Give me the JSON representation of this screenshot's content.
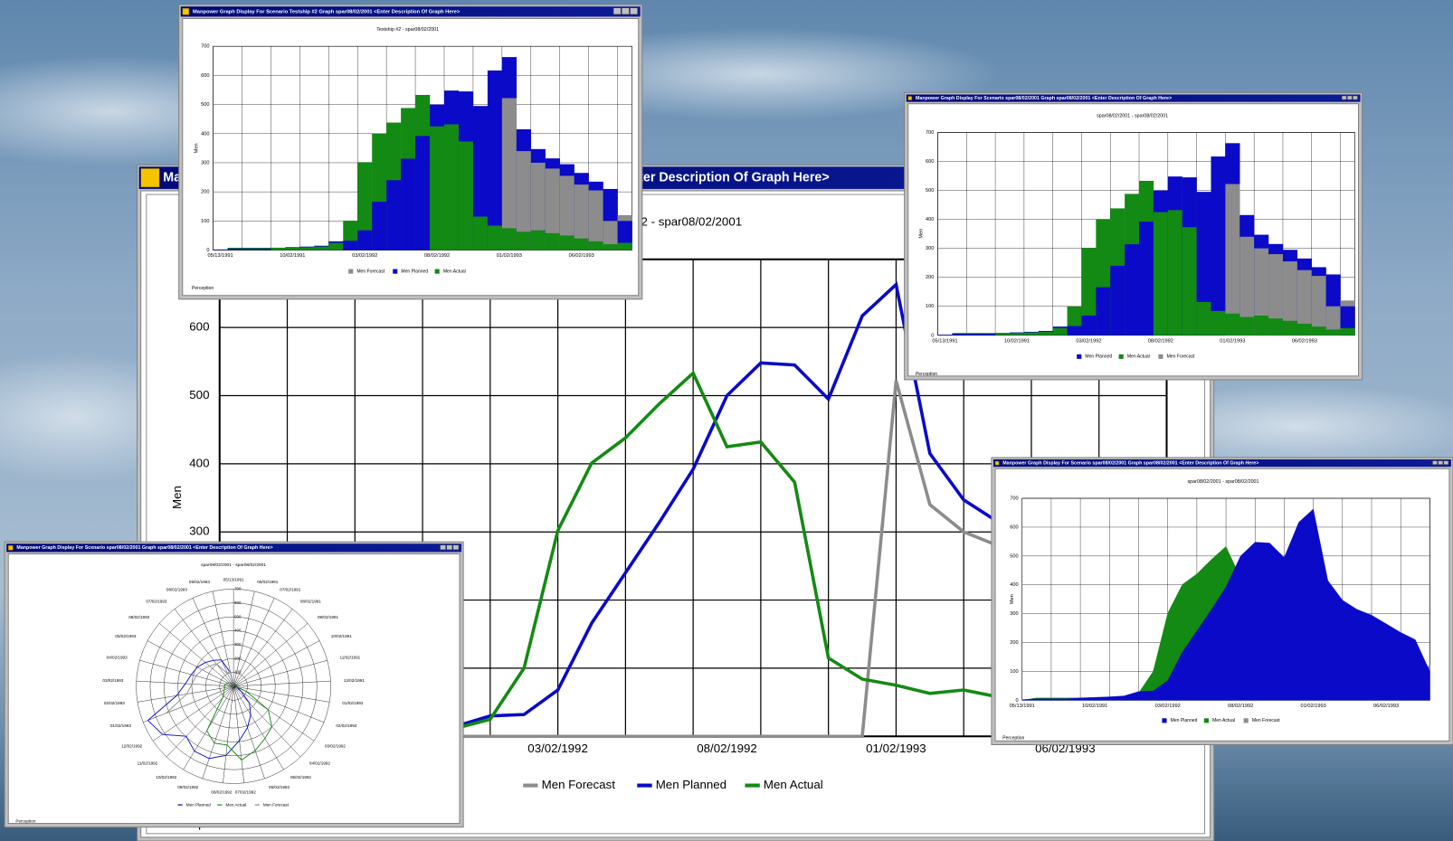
{
  "chart_data": [
    {
      "type": "line",
      "window_title": "Manpower Graph Display For Scenario Testship #2 Graph spar08/02/2001 <Enter Description Of Graph Here>",
      "title": "Testship #2 - spar08/02/2001",
      "y_label": "Men",
      "footer": "Perception",
      "categories": [
        "05/13/1991",
        null,
        null,
        null,
        null,
        "10/02/1991",
        null,
        null,
        null,
        null,
        "03/02/1992",
        null,
        null,
        null,
        null,
        "08/02/1992",
        null,
        null,
        null,
        null,
        "01/02/1993",
        null,
        null,
        null,
        null,
        "06/02/1993",
        null,
        null,
        null
      ],
      "series": [
        {
          "name": "Men Forecast",
          "color": "#8c8c8c",
          "values": [
            0,
            0,
            0,
            0,
            0,
            0,
            0,
            0,
            0,
            0,
            0,
            0,
            0,
            0,
            0,
            0,
            0,
            0,
            0,
            0,
            522,
            340,
            300,
            280,
            255,
            225,
            205,
            100,
            120
          ]
        },
        {
          "name": "Men Planned",
          "color": "#0a0ac8",
          "values": [
            2,
            5,
            5,
            5,
            8,
            10,
            12,
            15,
            30,
            32,
            68,
            166,
            240,
            314,
            392,
            500,
            548,
            545,
            495,
            617,
            663,
            415,
            347,
            315,
            295,
            265,
            235,
            210,
            100
          ]
        },
        {
          "name": "Men Actual",
          "color": "#138a13",
          "values": [
            0,
            8,
            8,
            8,
            8,
            8,
            10,
            12,
            25,
            100,
            302,
            401,
            438,
            488,
            533,
            425,
            432,
            373,
            115,
            84,
            75,
            63,
            68,
            58,
            50,
            40,
            30,
            20,
            25
          ]
        }
      ],
      "ylim": [
        0,
        700
      ],
      "yticks": [
        0,
        100,
        200,
        300,
        400,
        500,
        600,
        700
      ],
      "grid": true,
      "legend": "bottom"
    },
    {
      "type": "bar",
      "window_title": "Manpower Graph Display For Scenario Testship #2 Graph spar08/02/2001 <Enter Description Of Graph Here>",
      "title": "Testship #2 - spar08/02/2001",
      "y_label": "Men",
      "footer": "Perception",
      "categories": [
        "05/13/1991",
        null,
        null,
        null,
        null,
        "10/02/1991",
        null,
        null,
        null,
        null,
        "03/02/1992",
        null,
        null,
        null,
        null,
        "08/02/1992",
        null,
        null,
        null,
        null,
        "01/02/1993",
        null,
        null,
        null,
        null,
        "06/02/1993",
        null,
        null,
        null
      ],
      "series": [
        {
          "name": "Men Forecast",
          "color": "#8c8c8c",
          "values": [
            0,
            0,
            0,
            0,
            0,
            0,
            0,
            0,
            0,
            0,
            0,
            0,
            0,
            0,
            0,
            0,
            0,
            0,
            0,
            0,
            522,
            340,
            300,
            280,
            255,
            225,
            205,
            100,
            120
          ]
        },
        {
          "name": "Men Planned",
          "color": "#0a0ac8",
          "values": [
            2,
            5,
            5,
            5,
            8,
            10,
            12,
            15,
            30,
            32,
            68,
            166,
            240,
            314,
            392,
            500,
            548,
            545,
            495,
            617,
            663,
            415,
            347,
            315,
            295,
            265,
            235,
            210,
            100
          ]
        },
        {
          "name": "Men Actual",
          "color": "#138a13",
          "values": [
            0,
            8,
            8,
            8,
            8,
            8,
            10,
            12,
            25,
            100,
            302,
            401,
            438,
            488,
            533,
            425,
            432,
            373,
            115,
            84,
            75,
            63,
            68,
            58,
            50,
            40,
            30,
            20,
            25
          ]
        }
      ],
      "ylim": [
        0,
        700
      ],
      "yticks": [
        0,
        100,
        200,
        300,
        400,
        500,
        600,
        700
      ],
      "grid": true,
      "legend": "bottom"
    },
    {
      "type": "bar",
      "window_title": "Manpower Graph Display For Scenario spar08/02/2001 Graph spar08/02/2001 <Enter Description Of Graph Here>",
      "title": "spar08/02/2001 - spar08/02/2001",
      "y_label": "Men",
      "footer": "Perception",
      "categories": [
        "05/13/1991",
        null,
        null,
        null,
        null,
        "10/02/1991",
        null,
        null,
        null,
        null,
        "03/02/1992",
        null,
        null,
        null,
        null,
        "08/02/1992",
        null,
        null,
        null,
        null,
        "01/02/1993",
        null,
        null,
        null,
        null,
        "06/02/1993",
        null,
        null,
        null
      ],
      "series": [
        {
          "name": "Men Planned",
          "color": "#0a0ac8",
          "values": [
            2,
            5,
            5,
            5,
            8,
            10,
            12,
            15,
            30,
            32,
            68,
            166,
            240,
            314,
            392,
            500,
            548,
            545,
            495,
            617,
            663,
            415,
            347,
            315,
            295,
            265,
            235,
            210,
            100
          ]
        },
        {
          "name": "Men Actual",
          "color": "#138a13",
          "values": [
            0,
            8,
            8,
            8,
            8,
            8,
            10,
            12,
            25,
            100,
            302,
            401,
            438,
            488,
            533,
            425,
            432,
            373,
            115,
            84,
            75,
            63,
            68,
            58,
            50,
            40,
            30,
            20,
            25
          ]
        },
        {
          "name": "Men Forecast",
          "color": "#8c8c8c",
          "values": [
            0,
            0,
            0,
            0,
            0,
            0,
            0,
            0,
            0,
            0,
            0,
            0,
            0,
            0,
            0,
            0,
            0,
            0,
            0,
            0,
            522,
            340,
            300,
            280,
            255,
            225,
            205,
            100,
            120
          ]
        }
      ],
      "ylim": [
        0,
        700
      ],
      "yticks": [
        0,
        100,
        200,
        300,
        400,
        500,
        600,
        700
      ],
      "grid": true,
      "legend": "bottom"
    },
    {
      "type": "area",
      "window_title": "Manpower Graph Display For Scenario spar08/02/2001 Graph spar08/02/2001 <Enter Description Of Graph Here>",
      "title": "spar08/02/2001 - spar08/02/2001",
      "y_label": "Men",
      "footer": "Perception",
      "categories": [
        "05/13/1991",
        null,
        null,
        null,
        null,
        "10/02/1991",
        null,
        null,
        null,
        null,
        "03/02/1992",
        null,
        null,
        null,
        null,
        "08/02/1992",
        null,
        null,
        null,
        null,
        "01/02/1993",
        null,
        null,
        null,
        null,
        "06/02/1993",
        null,
        null,
        null
      ],
      "series": [
        {
          "name": "Men Planned",
          "color": "#0a0ac8",
          "values": [
            2,
            5,
            5,
            5,
            8,
            10,
            12,
            15,
            30,
            32,
            68,
            166,
            240,
            314,
            392,
            500,
            548,
            545,
            495,
            617,
            663,
            415,
            347,
            315,
            295,
            265,
            235,
            210,
            100
          ]
        },
        {
          "name": "Men Actual",
          "color": "#138a13",
          "values": [
            0,
            8,
            8,
            8,
            8,
            8,
            10,
            12,
            25,
            100,
            302,
            401,
            438,
            488,
            533,
            425,
            432,
            373,
            115,
            84,
            75,
            63,
            68,
            58,
            50,
            40,
            30,
            20,
            25
          ]
        },
        {
          "name": "Men Forecast",
          "color": "#8c8c8c",
          "values": [
            0,
            0,
            0,
            0,
            0,
            0,
            0,
            0,
            0,
            0,
            0,
            0,
            0,
            0,
            0,
            0,
            0,
            0,
            0,
            0,
            522,
            340,
            300,
            280,
            255,
            225,
            205,
            100,
            120
          ]
        }
      ],
      "ylim": [
        0,
        700
      ],
      "yticks": [
        0,
        100,
        200,
        300,
        400,
        500,
        600,
        700
      ],
      "grid": true,
      "legend": "bottom"
    },
    {
      "type": "polar",
      "window_title": "Manpower Graph Display For Scenario spar08/02/2001 Graph spar08/02/2001 <Enter Description Of Graph Here>",
      "title": "spar08/02/2001 - spar08/02/2001",
      "footer": "Perception",
      "categories": [
        "05/13/1991",
        "06/02/1991",
        "07/02/1991",
        "08/02/1991",
        "09/02/1991",
        "10/02/1991",
        "11/02/1991",
        "12/02/1991",
        "01/02/1992",
        "02/02/1992",
        "03/02/1992",
        "04/02/1992",
        "05/02/1992",
        "06/02/1992",
        "07/02/1992",
        "08/02/1992",
        "09/02/1992",
        "10/02/1992",
        "11/02/1992",
        "12/02/1992",
        "01/02/1993",
        "02/02/1993",
        "03/02/1993",
        "04/02/1993",
        "05/02/1993",
        "06/02/1993",
        "07/02/1993",
        "08/02/1993",
        "09/02/1993"
      ],
      "series": [
        {
          "name": "Men Planned",
          "color": "#0a0ac8",
          "values": [
            2,
            5,
            5,
            5,
            8,
            10,
            12,
            15,
            30,
            32,
            68,
            166,
            240,
            314,
            392,
            500,
            548,
            545,
            495,
            617,
            663,
            415,
            347,
            315,
            295,
            265,
            235,
            210,
            100
          ]
        },
        {
          "name": "Men Actual",
          "color": "#138a13",
          "values": [
            0,
            8,
            8,
            8,
            8,
            8,
            10,
            12,
            25,
            100,
            302,
            401,
            438,
            488,
            533,
            425,
            432,
            373,
            115,
            84,
            75,
            63,
            68,
            58,
            50,
            40,
            30,
            20,
            25
          ]
        },
        {
          "name": "Men Forecast",
          "color": "#8c8c8c",
          "values": [
            0,
            0,
            0,
            0,
            0,
            0,
            0,
            0,
            0,
            0,
            0,
            0,
            0,
            0,
            0,
            0,
            0,
            0,
            0,
            0,
            522,
            340,
            300,
            280,
            255,
            225,
            205,
            100,
            120
          ]
        }
      ],
      "ylim": [
        0,
        700
      ],
      "yticks": [
        0,
        100,
        200,
        300,
        400,
        500,
        600,
        700
      ],
      "grid": true,
      "legend": "bottom"
    }
  ]
}
